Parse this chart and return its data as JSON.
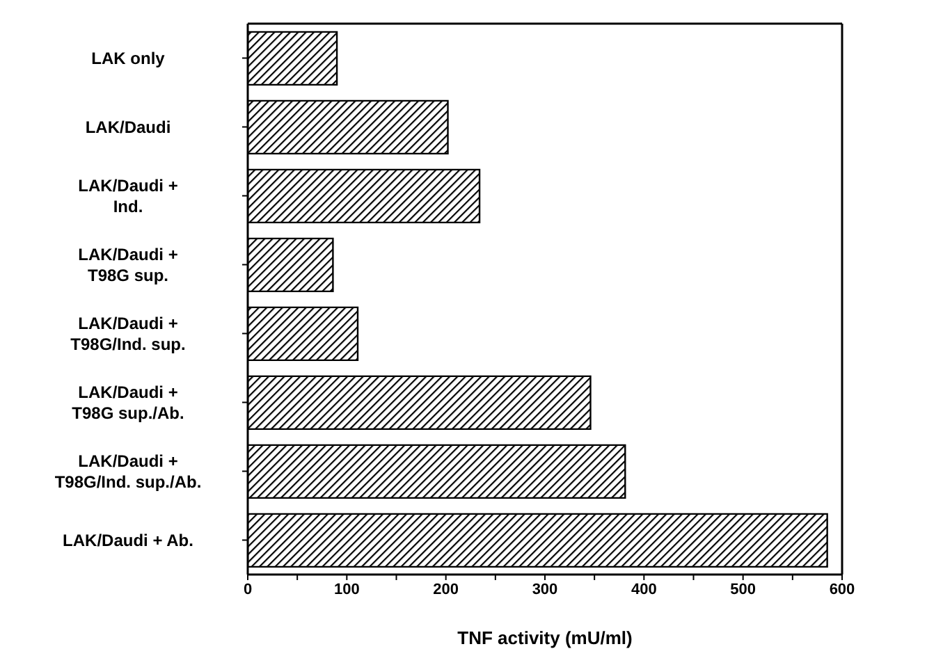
{
  "chart_data": {
    "type": "bar",
    "orientation": "horizontal",
    "xlabel": "TNF activity (mU/ml)",
    "categories": [
      "LAK only",
      "LAK/Daudi",
      "LAK/Daudi +\nInd.",
      "LAK/Daudi +\nT98G sup.",
      "LAK/Daudi +\nT98G/Ind. sup.",
      "LAK/Daudi +\nT98G sup./Ab.",
      "LAK/Daudi +\nT98G/Ind. sup./Ab.",
      "LAK/Daudi + Ab."
    ],
    "values": [
      90,
      202,
      234,
      86,
      111,
      346,
      381,
      585
    ],
    "color": "#000000",
    "xlim": [
      0,
      600
    ],
    "xticks": [
      0,
      {
        "value": 50,
        "label": null
      },
      100,
      {
        "value": 150,
        "label": null
      },
      200,
      {
        "value": 250,
        "label": null
      },
      300,
      {
        "value": 350,
        "label": null
      },
      400,
      {
        "value": 450,
        "label": null
      },
      500,
      {
        "value": 550,
        "label": null
      },
      600
    ],
    "legend": false
  }
}
